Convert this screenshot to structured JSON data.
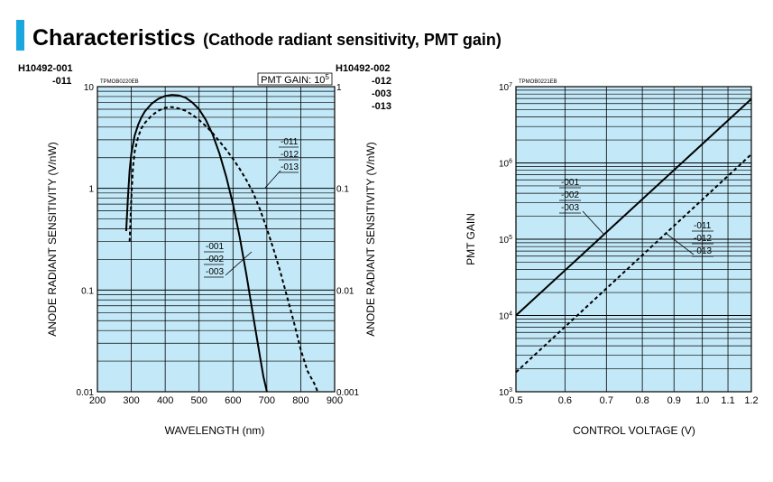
{
  "title": {
    "main": "Characteristics",
    "sub": "(Cathode radiant sensitivity, PMT gain)"
  },
  "colors": {
    "plot_bg": "#c3e9f8",
    "accent": "#1aa7e0",
    "line": "#000000"
  },
  "left_models": [
    "H10492-001",
    "-011"
  ],
  "right_models": [
    "H10492-002",
    "-012",
    "-003",
    "-013"
  ],
  "chart_data": [
    {
      "type": "line",
      "code": "TPMOB0220EB",
      "box_label": "PMT GAIN: 10",
      "box_label_exp": "5",
      "xlabel": "WAVELENGTH (nm)",
      "ylabel": "ANODE RADIANT SENSITIVITY (V/nW)",
      "xlim": [
        200,
        900
      ],
      "ylim": [
        0.01,
        10
      ],
      "yscale": "log",
      "grid": true,
      "x_ticks": [
        "200",
        "300",
        "400",
        "500",
        "600",
        "700",
        "800",
        "900"
      ],
      "y_ticks_left": [
        "10",
        "1",
        "0.1",
        "0.01"
      ],
      "y_ticks_right": [
        "1",
        "0.1",
        "0.01",
        "0.001"
      ],
      "series": [
        {
          "labels": [
            "-001",
            "-002",
            "-003"
          ],
          "style": "solid",
          "x": [
            285,
            290,
            295,
            300,
            310,
            320,
            330,
            340,
            360,
            380,
            400,
            420,
            440,
            460,
            480,
            500,
            520,
            540,
            560,
            580,
            600,
            620,
            640,
            660,
            680,
            690,
            700
          ],
          "y": [
            0.38,
            0.8,
            1.5,
            2.2,
            3.3,
            4.2,
            5.0,
            5.7,
            6.8,
            7.6,
            8.1,
            8.3,
            8.2,
            7.8,
            7.0,
            6.0,
            4.7,
            3.4,
            2.2,
            1.3,
            0.7,
            0.33,
            0.14,
            0.055,
            0.022,
            0.014,
            0.01
          ]
        },
        {
          "labels": [
            "-011",
            "-012",
            "-013"
          ],
          "style": "dashed",
          "x": [
            295,
            300,
            305,
            310,
            320,
            330,
            340,
            360,
            380,
            400,
            420,
            440,
            460,
            480,
            500,
            520,
            540,
            560,
            580,
            600,
            620,
            640,
            660,
            680,
            700,
            720,
            740,
            760,
            780,
            800,
            820,
            840,
            850
          ],
          "y": [
            0.3,
            0.8,
            1.6,
            2.3,
            3.2,
            3.9,
            4.4,
            5.2,
            5.8,
            6.2,
            6.3,
            6.1,
            5.8,
            5.3,
            4.7,
            4.1,
            3.5,
            2.9,
            2.4,
            1.95,
            1.55,
            1.2,
            0.9,
            0.62,
            0.4,
            0.25,
            0.15,
            0.085,
            0.048,
            0.026,
            0.016,
            0.012,
            0.01
          ]
        }
      ]
    },
    {
      "type": "line",
      "code": "TPMOB0221EB",
      "xlabel": "CONTROL VOLTAGE (V)",
      "ylabel": "PMT GAIN",
      "xscale": "log",
      "yscale": "log",
      "xlim": [
        0.5,
        1.2
      ],
      "ylim": [
        1000,
        10000000
      ],
      "grid": true,
      "x_ticks": [
        "0.5",
        "0.6",
        "0.7",
        "0.8",
        "0.9",
        "1.0",
        "1.1",
        "1.2"
      ],
      "y_ticks": [
        {
          "base": "10",
          "exp": "7"
        },
        {
          "base": "10",
          "exp": "6"
        },
        {
          "base": "10",
          "exp": "5"
        },
        {
          "base": "10",
          "exp": "4"
        },
        {
          "base": "10",
          "exp": "3"
        }
      ],
      "series": [
        {
          "labels": [
            "-001",
            "-002",
            "-003"
          ],
          "style": "solid",
          "x": [
            0.5,
            1.2
          ],
          "y": [
            10000,
            6900000
          ]
        },
        {
          "labels": [
            "-011",
            "-012",
            "-013"
          ],
          "style": "dashed",
          "x": [
            0.5,
            1.2
          ],
          "y": [
            1800,
            1300000
          ]
        }
      ]
    }
  ]
}
